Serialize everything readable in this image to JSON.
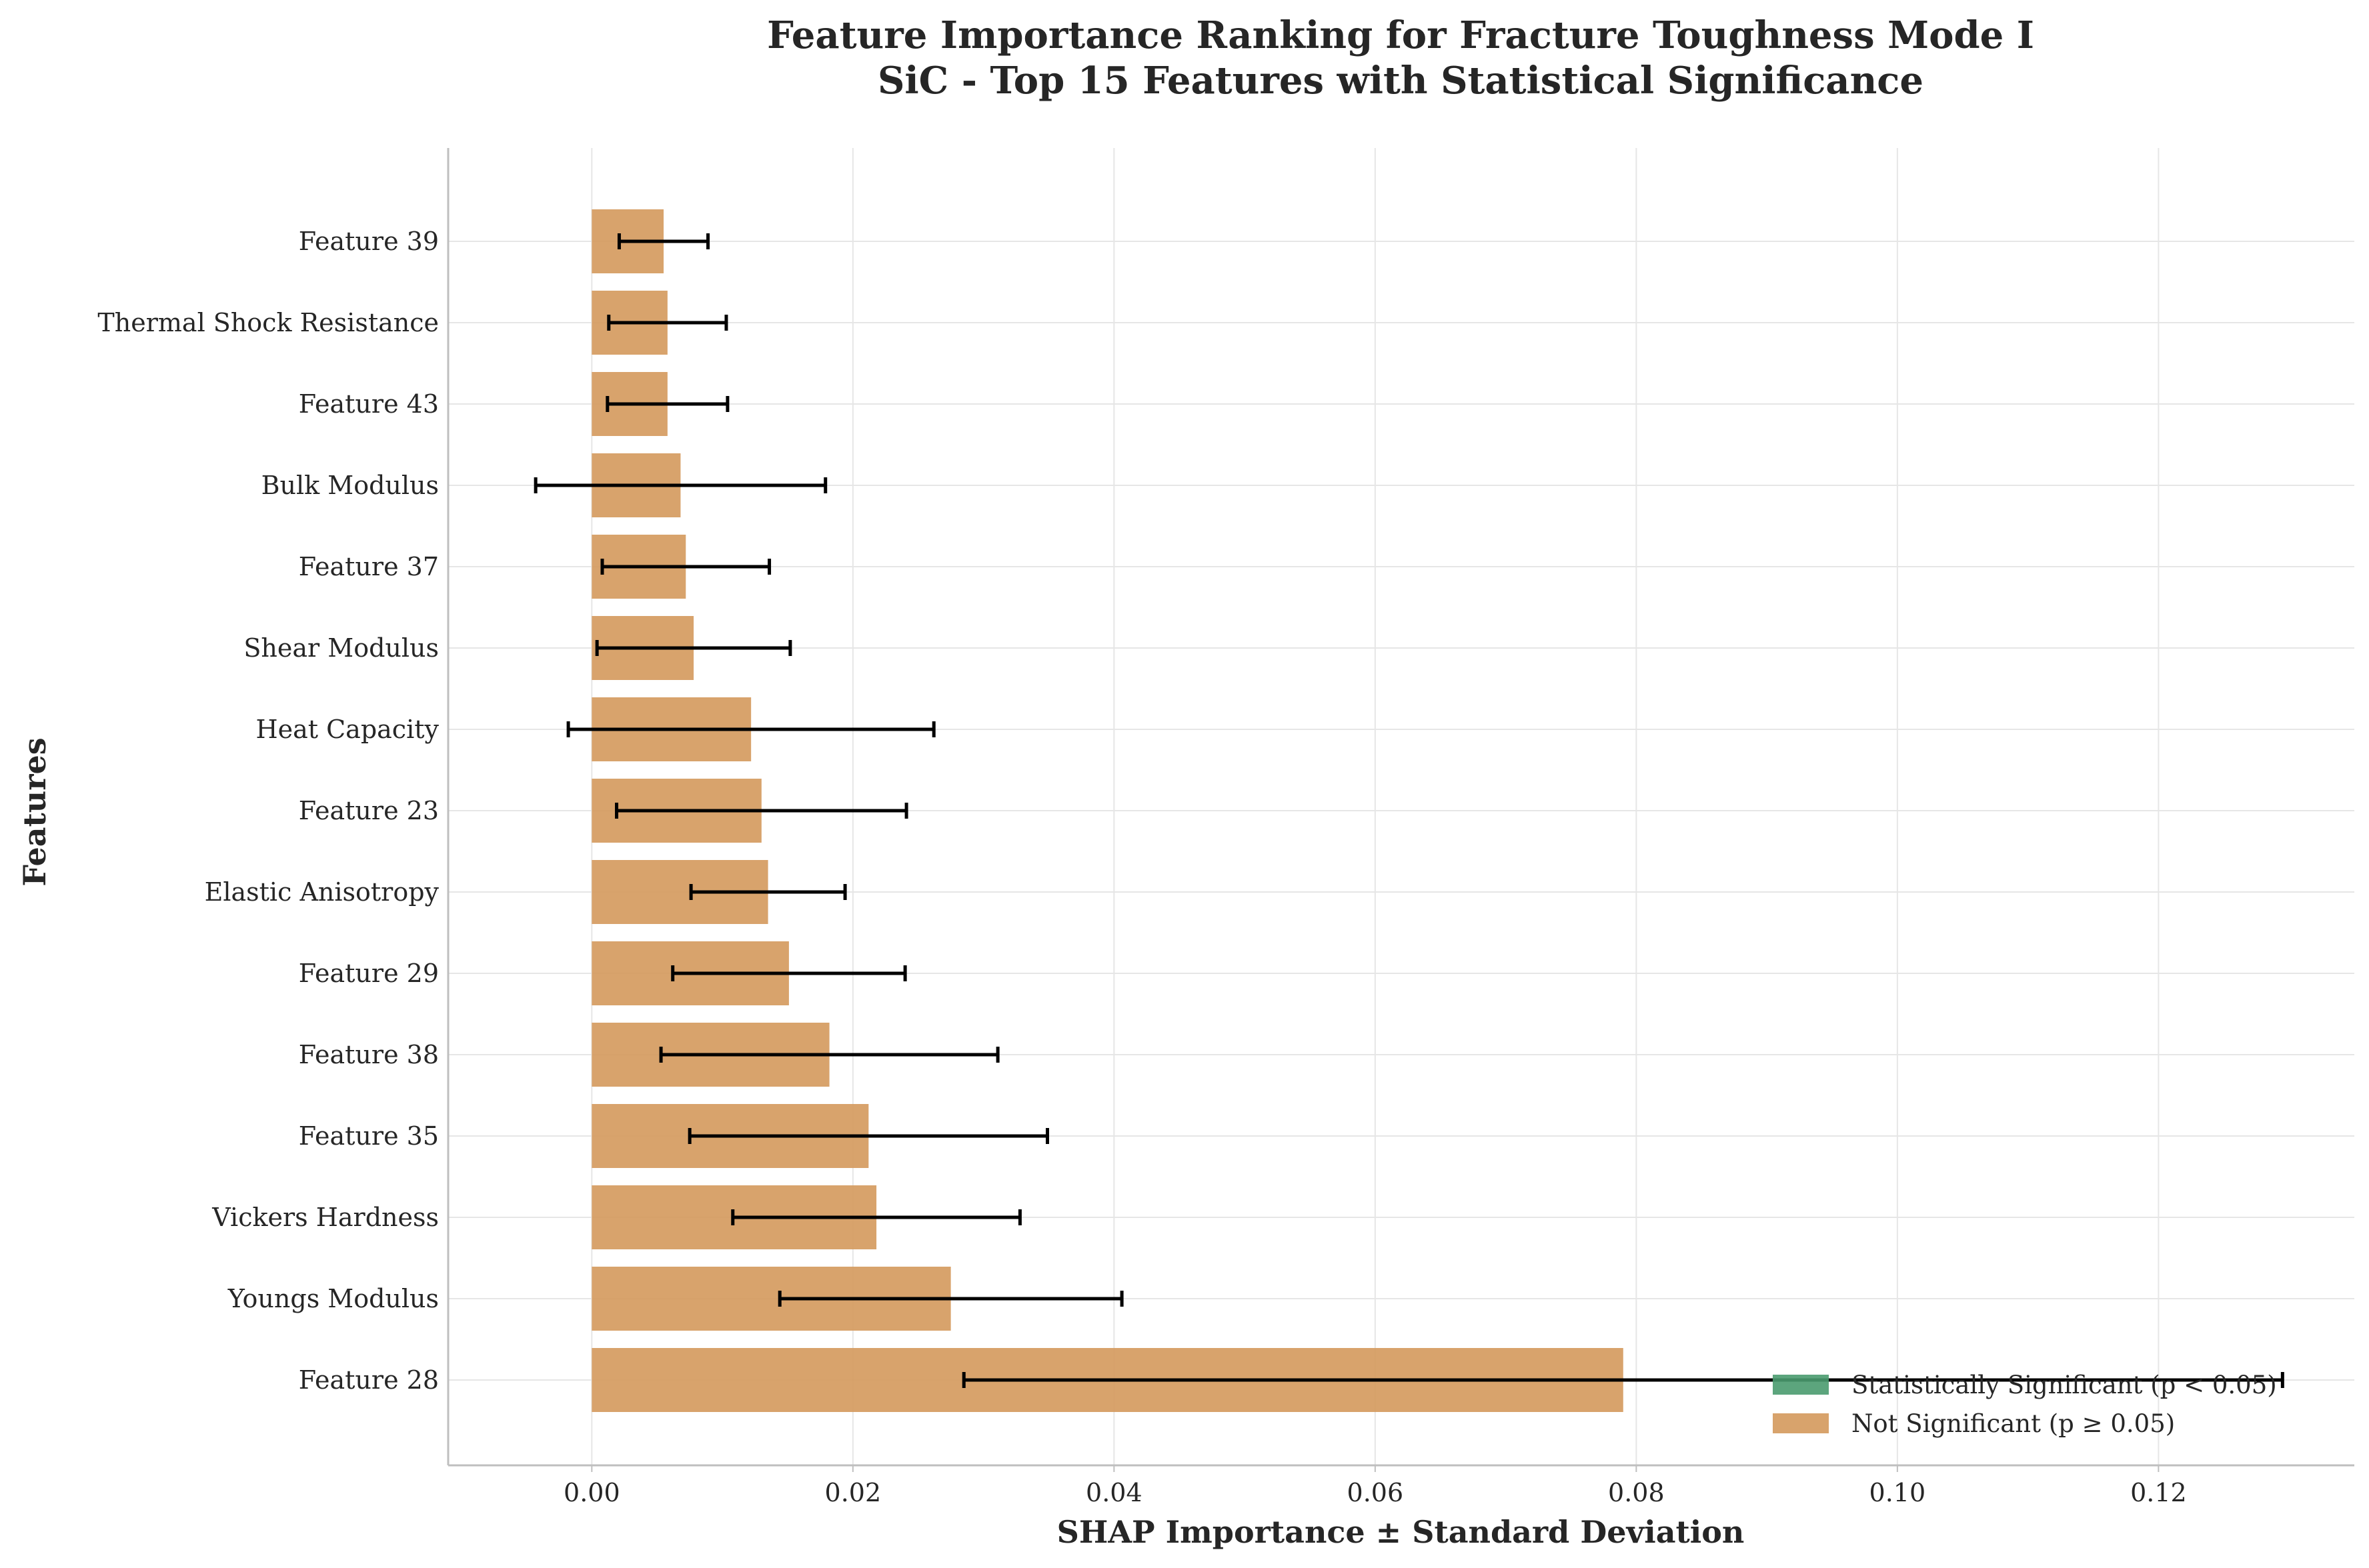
{
  "chart_data": {
    "type": "bar",
    "orientation": "horizontal",
    "title_line1": "Feature Importance Ranking for Fracture Toughness Mode I",
    "title_line2": "SiC - Top 15 Features with Statistical Significance",
    "xlabel": "SHAP Importance ± Standard Deviation",
    "ylabel": "Features",
    "xlim": [
      -0.011,
      0.135
    ],
    "xticks": [
      0.0,
      0.02,
      0.04,
      0.06,
      0.08,
      0.1,
      0.12
    ],
    "xtick_labels": [
      "0.00",
      "0.02",
      "0.04",
      "0.06",
      "0.08",
      "0.10",
      "0.12"
    ],
    "grid": true,
    "legend_position": "bottom-right",
    "legend": [
      {
        "label": "Statistically Significant (p < 0.05)",
        "color": "#4a9b6f"
      },
      {
        "label": "Not Significant (p ≥ 0.05)",
        "color": "#d4995c"
      }
    ],
    "categories": [
      "Feature 39",
      "Thermal Shock Resistance",
      "Feature 43",
      "Bulk Modulus",
      "Feature 37",
      "Shear Modulus",
      "Heat Capacity",
      "Feature 23",
      "Elastic Anisotropy",
      "Feature 29",
      "Feature 38",
      "Feature 35",
      "Vickers Hardness",
      "Youngs Modulus",
      "Feature 28"
    ],
    "values": [
      0.0055,
      0.0058,
      0.0058,
      0.0068,
      0.0072,
      0.0078,
      0.0122,
      0.013,
      0.0135,
      0.0151,
      0.0182,
      0.0212,
      0.0218,
      0.0275,
      0.079
    ],
    "std": [
      0.0034,
      0.0045,
      0.0046,
      0.0111,
      0.0064,
      0.0074,
      0.014,
      0.0111,
      0.0059,
      0.0089,
      0.0129,
      0.0137,
      0.011,
      0.0131,
      0.0505
    ],
    "significant": [
      false,
      false,
      false,
      false,
      false,
      false,
      false,
      false,
      false,
      false,
      false,
      false,
      false,
      false,
      false
    ]
  }
}
